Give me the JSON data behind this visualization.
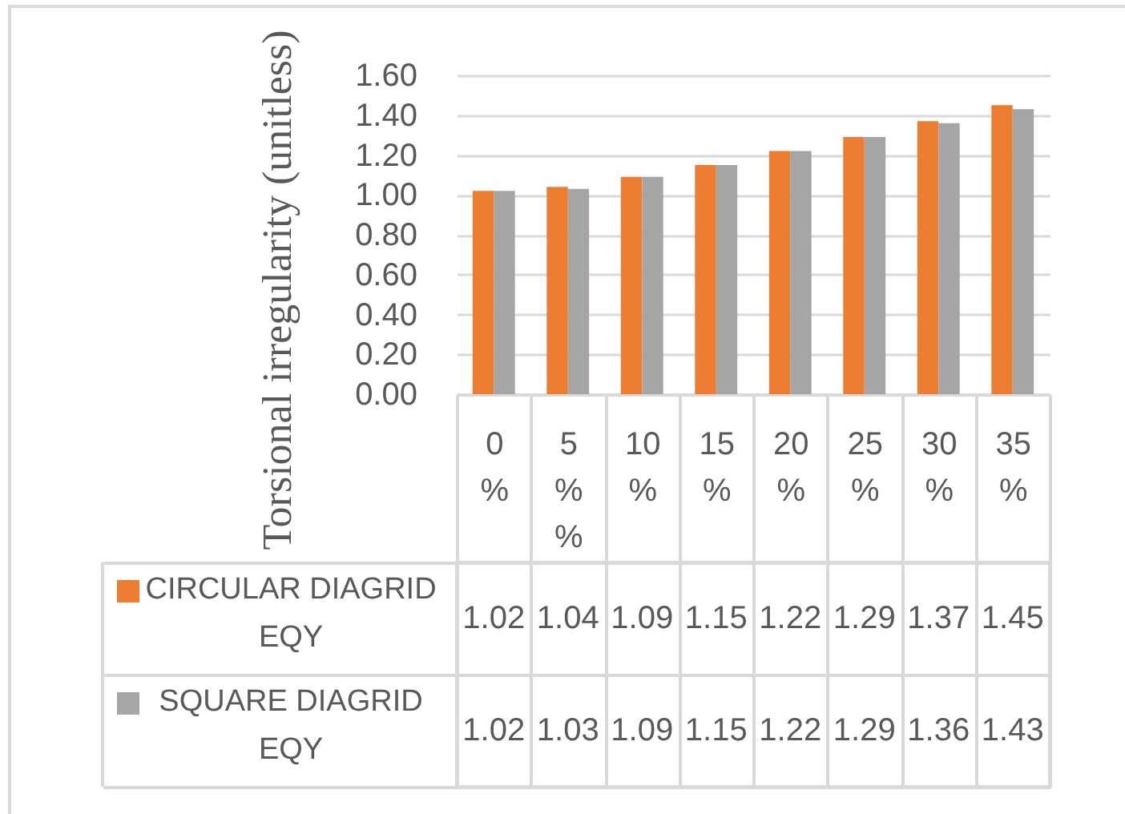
{
  "chart_data": {
    "type": "bar",
    "categories": [
      "0 %",
      "5 % %",
      "10 %",
      "15 %",
      "20 %",
      "25 %",
      "30 %",
      "35 %"
    ],
    "series": [
      {
        "name": "CIRCULAR DIAGRID EQY",
        "color": "#ed7d31",
        "values": [
          1.02,
          1.04,
          1.09,
          1.15,
          1.22,
          1.29,
          1.37,
          1.45
        ]
      },
      {
        "name": "SQUARE DIAGRID EQY",
        "color": "#a5a5a5",
        "values": [
          1.02,
          1.03,
          1.09,
          1.15,
          1.22,
          1.29,
          1.36,
          1.43
        ]
      }
    ],
    "ylabel": "Torsional irregularity (unitless)",
    "ylim": [
      0,
      1.6
    ],
    "yticks": [
      {
        "value": 0,
        "label": "0.00"
      },
      {
        "value": 0.2,
        "label": "0.20"
      },
      {
        "value": 0.4,
        "label": "0.40"
      },
      {
        "value": 0.6,
        "label": "0.60"
      },
      {
        "value": 0.8,
        "label": "0.80"
      },
      {
        "value": 1,
        "label": "1.00"
      },
      {
        "value": 1.2,
        "label": "1.20"
      },
      {
        "value": 1.4,
        "label": "1.40"
      },
      {
        "value": 1.6,
        "label": "1.60"
      }
    ],
    "grid": "y",
    "legend": "bottom",
    "data_labels": true
  }
}
